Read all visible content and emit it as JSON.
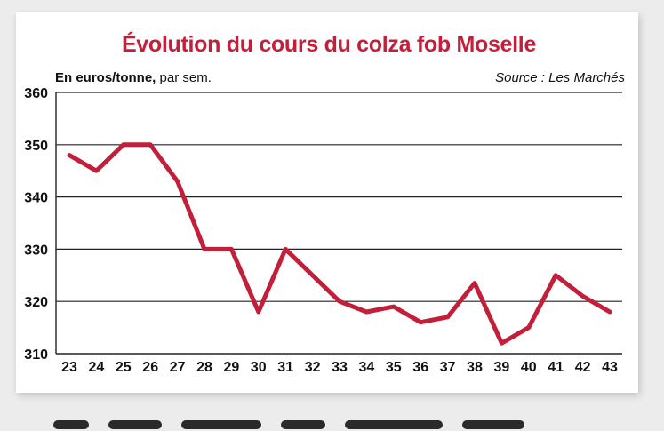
{
  "chart_data": {
    "type": "line",
    "title": "Évolution du cours du colza fob Moselle",
    "unit_bold": "En euros/tonne,",
    "unit_rest": " par sem.",
    "source": "Source : Les Marchés",
    "x": [
      "23",
      "24",
      "25",
      "26",
      "27",
      "28",
      "29",
      "30",
      "31",
      "32",
      "33",
      "34",
      "35",
      "36",
      "37",
      "38",
      "39",
      "40",
      "41",
      "42",
      "43"
    ],
    "values": [
      348,
      345,
      350,
      350,
      343,
      330,
      330,
      318,
      330,
      325,
      320,
      318,
      319,
      316,
      317,
      323.5,
      312,
      315,
      325,
      321,
      318
    ],
    "y_ticks": [
      "360",
      "350",
      "340",
      "330",
      "320",
      "310"
    ],
    "ylim": [
      310,
      360
    ],
    "grid": true,
    "line_color": "#c2203a"
  }
}
